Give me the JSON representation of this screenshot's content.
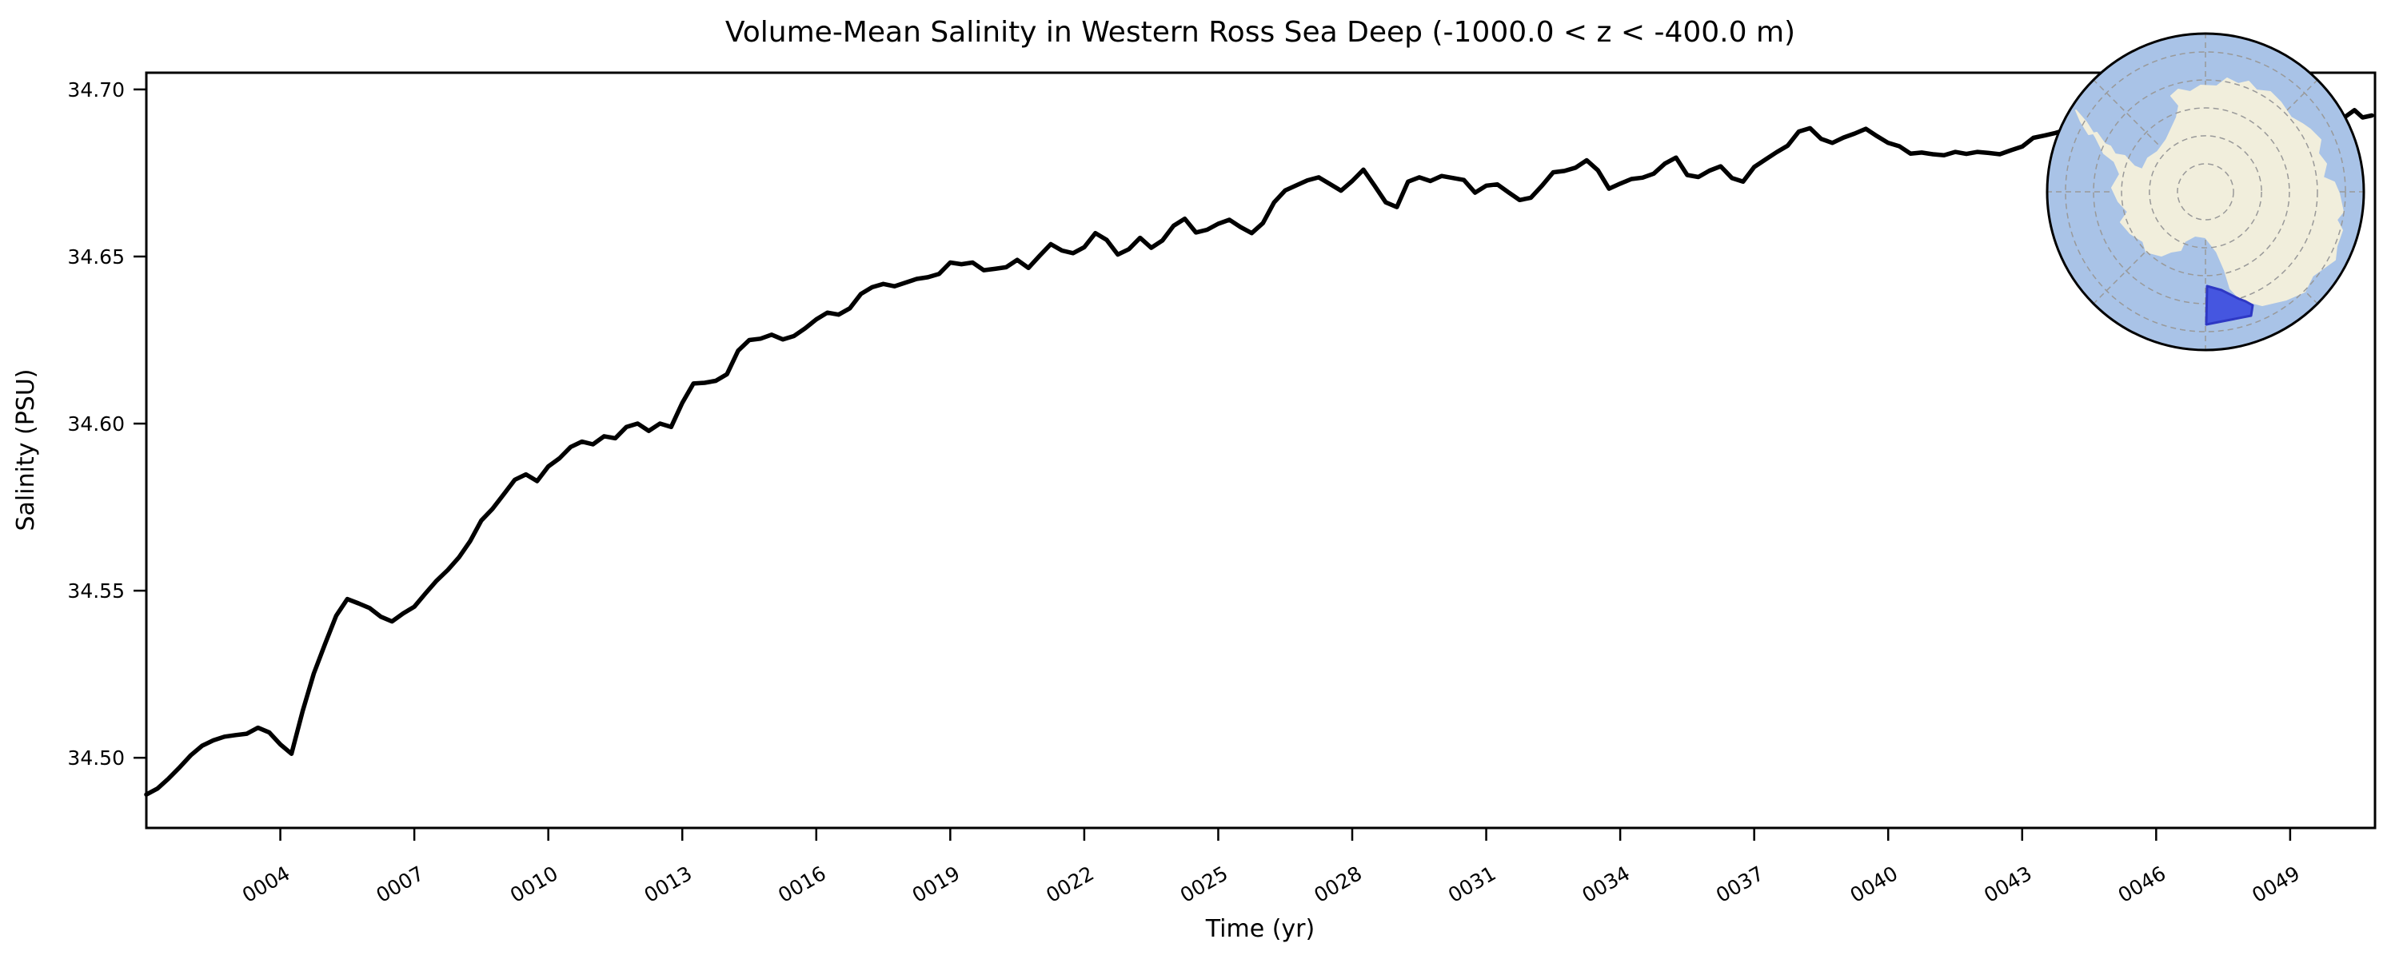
{
  "page": {
    "background": "#ffffff"
  },
  "chart_data": {
    "type": "line",
    "title": "Volume-Mean Salinity in Western Ross Sea Deep (-1000.0 < z < -400.0 m)",
    "xlabel": "Time (yr)",
    "ylabel": "Salinity (PSU)",
    "xlim": [
      1.0,
      50.9
    ],
    "ylim": [
      34.479,
      34.705
    ],
    "grid": false,
    "legend_position": "none",
    "frame_color": "#000000",
    "x_ticks": {
      "values": [
        4,
        7,
        10,
        13,
        16,
        19,
        22,
        25,
        28,
        31,
        34,
        37,
        40,
        43,
        46,
        49
      ],
      "labels": [
        "0004",
        "0007",
        "0010",
        "0013",
        "0016",
        "0019",
        "0022",
        "0025",
        "0028",
        "0031",
        "0034",
        "0037",
        "0040",
        "0043",
        "0046",
        "0049"
      ],
      "label_rotation_deg": 30
    },
    "y_ticks": {
      "values": [
        34.5,
        34.55,
        34.6,
        34.65,
        34.7
      ],
      "labels": [
        "34.50",
        "34.55",
        "34.60",
        "34.65",
        "34.70"
      ]
    },
    "series": [
      {
        "name": "volume-mean salinity",
        "color": "#000000",
        "line_width": 5.5,
        "x_start": 1.0,
        "x_step": 0.25,
        "x_tail": [
          50.17,
          50.44,
          50.62,
          50.83
        ],
        "y": [
          34.489,
          34.4908,
          34.4938,
          34.4972,
          34.5008,
          34.5036,
          34.5052,
          34.5063,
          34.5068,
          34.5072,
          34.509,
          34.5076,
          34.504,
          34.5012,
          34.514,
          34.5252,
          34.534,
          34.5425,
          34.5475,
          34.5462,
          34.5448,
          34.5422,
          34.5408,
          34.5432,
          34.5452,
          34.5492,
          34.553,
          34.5562,
          34.56,
          34.5648,
          34.571,
          34.5745,
          34.5788,
          34.5832,
          34.5848,
          34.5828,
          34.5872,
          34.5896,
          34.593,
          34.5946,
          34.5938,
          34.5962,
          34.5956,
          34.599,
          34.6,
          34.5978,
          34.6,
          34.599,
          34.6062,
          34.612,
          34.6122,
          34.6128,
          34.6148,
          34.6218,
          34.625,
          34.6254,
          34.6266,
          34.6252,
          34.6262,
          34.6285,
          34.6312,
          34.6332,
          34.6326,
          34.6345,
          34.6388,
          34.6408,
          34.6418,
          34.6411,
          34.6422,
          34.6433,
          34.6438,
          34.6448,
          34.6482,
          34.6477,
          34.6482,
          34.6459,
          34.6463,
          34.6468,
          34.649,
          34.6466,
          34.6502,
          34.6537,
          34.6518,
          34.651,
          34.6528,
          34.657,
          34.655,
          34.6506,
          34.6522,
          34.6556,
          34.6526,
          34.6548,
          34.6592,
          34.6613,
          34.6572,
          34.658,
          34.6598,
          34.661,
          34.6588,
          34.657,
          34.66,
          34.6662,
          34.6698,
          34.6713,
          34.6728,
          34.6737,
          34.6717,
          34.6697,
          34.6726,
          34.676,
          34.6712,
          34.6662,
          34.6648,
          34.6724,
          34.6737,
          34.6726,
          34.6741,
          34.6735,
          34.6729,
          34.6691,
          34.6712,
          34.6716,
          34.6692,
          34.6669,
          34.6676,
          34.6712,
          34.6752,
          34.6756,
          34.6766,
          34.6788,
          34.6758,
          34.6703,
          34.6718,
          34.6732,
          34.6736,
          34.6748,
          34.6778,
          34.6796,
          34.6744,
          34.6738,
          34.6757,
          34.677,
          34.6735,
          34.6724,
          34.6768,
          34.679,
          34.6812,
          34.6832,
          34.6874,
          34.6884,
          34.6852,
          34.684,
          34.6856,
          34.6868,
          34.6882,
          34.686,
          34.684,
          34.683,
          34.6808,
          34.6811,
          34.6806,
          34.6803,
          34.6813,
          34.6807,
          34.6813,
          34.681,
          34.6806,
          34.6818,
          34.6829,
          34.6855,
          34.6862,
          34.687,
          34.688,
          34.6885,
          34.6891,
          34.6886,
          34.6889,
          34.6893,
          34.6901,
          34.6896,
          34.6898,
          34.6905,
          34.6911,
          34.6904,
          34.6908,
          34.6915,
          34.6912,
          34.6908,
          34.6913,
          34.6921,
          34.6925,
          34.6917,
          34.6921,
          34.6916,
          34.6919,
          34.6912,
          34.6904,
          34.6912,
          34.6938,
          34.6916,
          34.6922
        ]
      }
    ],
    "inset_map": {
      "name": "antarctica-polar-inset",
      "projection": "south-polar-stereographic",
      "ocean_color": "#a9c3e7",
      "land_color": "#f1eedc",
      "highlight_fill": "#4556e0",
      "highlight_stroke": "#2e38c4",
      "graticule_color": "#999999",
      "rim_color": "#000000",
      "graticule_circle_fractions": [
        0.177,
        0.354,
        0.53,
        0.707,
        0.884
      ],
      "radial_lines_deg": [
        0,
        45,
        90,
        135,
        180,
        225,
        270,
        315
      ],
      "land_polygon": [
        [
          -162,
          -102
        ],
        [
          -149,
          -87
        ],
        [
          -137,
          -68
        ],
        [
          -127,
          -48
        ],
        [
          -114,
          -38
        ],
        [
          -107,
          -22
        ],
        [
          -117,
          -5
        ],
        [
          -109,
          12
        ],
        [
          -97,
          25
        ],
        [
          -106,
          38
        ],
        [
          -94,
          52
        ],
        [
          -78,
          62
        ],
        [
          -74,
          75
        ],
        [
          -55,
          80
        ],
        [
          -43,
          75
        ],
        [
          -31,
          73
        ],
        [
          -26,
          62
        ],
        [
          -13,
          55
        ],
        [
          0,
          57
        ],
        [
          14,
          75
        ],
        [
          24,
          98
        ],
        [
          31,
          121
        ],
        [
          44,
          135
        ],
        [
          71,
          142
        ],
        [
          101,
          135
        ],
        [
          124,
          125
        ],
        [
          134,
          105
        ],
        [
          162,
          85
        ],
        [
          164,
          68
        ],
        [
          171,
          48
        ],
        [
          164,
          35
        ],
        [
          172,
          25
        ],
        [
          167,
          2
        ],
        [
          161,
          -12
        ],
        [
          147,
          -18
        ],
        [
          151,
          -35
        ],
        [
          141,
          -48
        ],
        [
          144,
          -65
        ],
        [
          131,
          -78
        ],
        [
          121,
          -85
        ],
        [
          107,
          -93
        ],
        [
          94,
          -112
        ],
        [
          81,
          -125
        ],
        [
          64,
          -127
        ],
        [
          54,
          -138
        ],
        [
          41,
          -135
        ],
        [
          27,
          -142
        ],
        [
          14,
          -132
        ],
        [
          -6,
          -133
        ],
        [
          -19,
          -125
        ],
        [
          -34,
          -128
        ],
        [
          -43,
          -120
        ],
        [
          -33,
          -108
        ],
        [
          -36,
          -93
        ],
        [
          -49,
          -65
        ],
        [
          -60,
          -50
        ],
        [
          -72,
          -42
        ],
        [
          -79,
          -28
        ],
        [
          -89,
          -32
        ],
        [
          -101,
          -45
        ],
        [
          -113,
          -47
        ],
        [
          -119,
          -57
        ],
        [
          -126,
          -60
        ],
        [
          -136,
          -74
        ],
        [
          -146,
          -72
        ],
        [
          -156,
          -88
        ]
      ],
      "islands": [
        [
          -38,
          61,
          7
        ],
        [
          -53,
          69,
          5
        ],
        [
          -57,
          -46,
          6
        ]
      ],
      "highlight_polygon": [
        [
          2,
          118
        ],
        [
          1,
          166
        ],
        [
          57,
          155
        ],
        [
          59,
          142
        ],
        [
          50,
          137
        ],
        [
          42,
          134
        ],
        [
          20,
          123
        ]
      ]
    }
  }
}
